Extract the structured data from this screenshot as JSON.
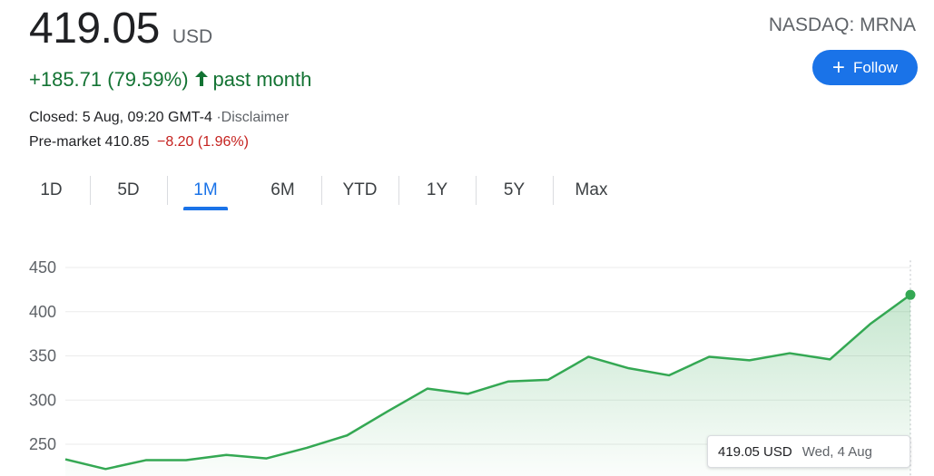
{
  "quote": {
    "price": "419.05",
    "currency": "USD",
    "change": "+185.71 (79.59%)",
    "period": "past month",
    "closed_text": "Closed: 5 Aug, 09:20 GMT-4",
    "disclaimer": "·Disclaimer",
    "premarket_label": "Pre-market 410.85",
    "premarket_change": "−8.20 (1.96%)"
  },
  "header": {
    "ticker": "NASDAQ: MRNA",
    "follow_label": "Follow"
  },
  "tabs": [
    {
      "label": "1D"
    },
    {
      "label": "5D"
    },
    {
      "label": "1M",
      "active": true
    },
    {
      "label": "6M"
    },
    {
      "label": "YTD"
    },
    {
      "label": "1Y"
    },
    {
      "label": "5Y"
    },
    {
      "label": "Max"
    }
  ],
  "tooltip": {
    "price": "419.05 USD",
    "date": "Wed, 4 Aug"
  },
  "colors": {
    "line": "#34a853",
    "accent": "#1a73e8",
    "positive": "#137333",
    "negative": "#c5221f"
  },
  "chart_data": {
    "type": "area",
    "y_ticks": [
      450,
      400,
      350,
      300,
      250
    ],
    "ylim": [
      216,
      458
    ],
    "values": [
      233,
      222,
      232,
      232,
      238,
      234,
      246,
      260,
      287,
      313,
      307,
      321,
      323,
      349,
      336,
      328,
      349,
      345,
      353,
      346,
      386,
      419.05
    ],
    "grid": true,
    "last_point_marker": true
  }
}
